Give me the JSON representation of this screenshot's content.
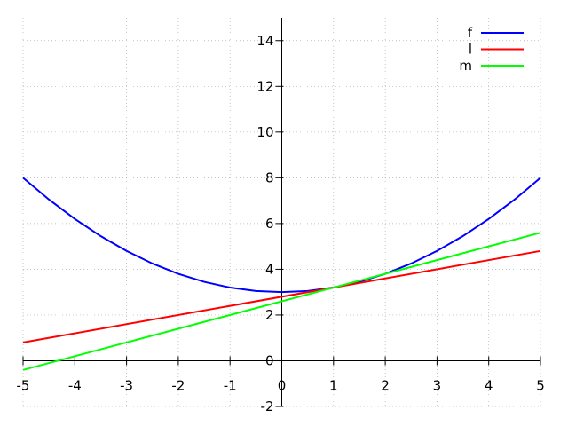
{
  "chart_data": {
    "type": "line",
    "title": "",
    "xlabel": "",
    "ylabel": "",
    "xlim": [
      -5,
      5
    ],
    "ylim": [
      -2,
      15
    ],
    "x_ticks": [
      -5,
      -4,
      -3,
      -2,
      -1,
      0,
      1,
      2,
      3,
      4,
      5
    ],
    "y_ticks": [
      -2,
      0,
      2,
      4,
      6,
      8,
      10,
      12,
      14
    ],
    "grid": true,
    "legend": "top-right",
    "series": [
      {
        "name": "f",
        "color": "#0000ff",
        "x": [
          -5,
          -4.5,
          -4,
          -3.5,
          -3,
          -2.5,
          -2,
          -1.5,
          -1,
          -0.5,
          0,
          0.5,
          1,
          1.5,
          2,
          2.5,
          3,
          3.5,
          4,
          4.5,
          5
        ],
        "y": [
          8,
          7.05,
          6.2,
          5.45,
          4.8,
          4.25,
          3.8,
          3.45,
          3.2,
          3.05,
          3,
          3.05,
          3.2,
          3.45,
          3.8,
          4.25,
          4.8,
          5.45,
          6.2,
          7.05,
          8
        ]
      },
      {
        "name": "l",
        "color": "#ff0000",
        "x": [
          -5,
          5
        ],
        "y": [
          0.8,
          4.8
        ]
      },
      {
        "name": "m",
        "color": "#00ff00",
        "x": [
          -5,
          5
        ],
        "y": [
          -0.4,
          5.6
        ]
      }
    ]
  }
}
